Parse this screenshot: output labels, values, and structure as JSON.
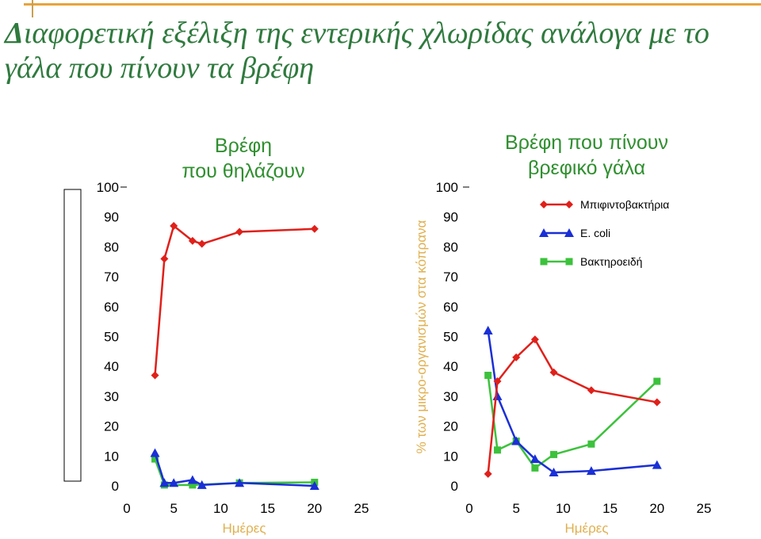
{
  "slide": {
    "title_initial": "Δ",
    "title_line1": "ιαφορετική εξέλιξη της εντερικής χλωρίδας ανάλογα με το",
    "title_line2": "γάλα που πίνουν τα βρέφη"
  },
  "colors": {
    "red": "#e0201a",
    "blue": "#1a2fd6",
    "green": "#3cc23c",
    "title_green": "#2f7a3e",
    "axis_label": "#e0b050",
    "rule": "#e8a33c"
  },
  "chart_data": [
    {
      "type": "line",
      "title": "Βρέφη\nπου θηλάζουν",
      "xlabel": "Ημέρες",
      "ylabel": "",
      "xlim": [
        0,
        25
      ],
      "ylim": [
        0,
        100
      ],
      "xticks": [
        0,
        5,
        10,
        15,
        20,
        25
      ],
      "yticks": [
        0,
        10,
        20,
        30,
        40,
        50,
        60,
        70,
        80,
        90,
        100
      ],
      "grid": false,
      "legend": "none",
      "series": [
        {
          "name": "Μπιφιντοβακτήρια",
          "color": "red",
          "marker": "diamond",
          "x": [
            3,
            4,
            5,
            7,
            8,
            12,
            20
          ],
          "y": [
            37,
            76,
            87,
            82,
            81,
            85,
            86
          ]
        },
        {
          "name": "E. coli",
          "color": "blue",
          "marker": "triangle",
          "x": [
            3,
            4,
            5,
            7,
            8,
            12,
            20
          ],
          "y": [
            11,
            1,
            1,
            2,
            0.3,
            1,
            0
          ]
        },
        {
          "name": "Βακτηροειδή",
          "color": "green",
          "marker": "square",
          "x": [
            3,
            4,
            7,
            12,
            20
          ],
          "y": [
            9,
            0.3,
            0.3,
            1,
            1.2
          ]
        }
      ]
    },
    {
      "type": "line",
      "title": "Βρέφη που πίνουν\nβρεφικό γάλα",
      "xlabel": "Ημέρες",
      "ylabel": "% των μικρο-οργανισμών στα κόπρανα",
      "xlim": [
        0,
        25
      ],
      "ylim": [
        0,
        100
      ],
      "xticks": [
        0,
        5,
        10,
        15,
        20,
        25
      ],
      "yticks": [
        0,
        10,
        20,
        30,
        40,
        50,
        60,
        70,
        80,
        90,
        100
      ],
      "grid": false,
      "legend": "top-right",
      "series": [
        {
          "name": "Μπιφιντοβακτήρια",
          "color": "red",
          "marker": "diamond",
          "x": [
            2,
            3,
            5,
            7,
            9,
            13,
            20
          ],
          "y": [
            4,
            35,
            43,
            49,
            38,
            32,
            28
          ]
        },
        {
          "name": "E. coli",
          "color": "blue",
          "marker": "triangle",
          "x": [
            2,
            3,
            5,
            7,
            9,
            13,
            20
          ],
          "y": [
            52,
            30,
            15,
            9,
            4.5,
            5,
            7
          ]
        },
        {
          "name": "Βακτηροειδή",
          "color": "green",
          "marker": "square",
          "x": [
            2,
            3,
            5,
            7,
            9,
            13,
            20
          ],
          "y": [
            37,
            12,
            15,
            6,
            10.5,
            14,
            35
          ]
        }
      ]
    }
  ]
}
